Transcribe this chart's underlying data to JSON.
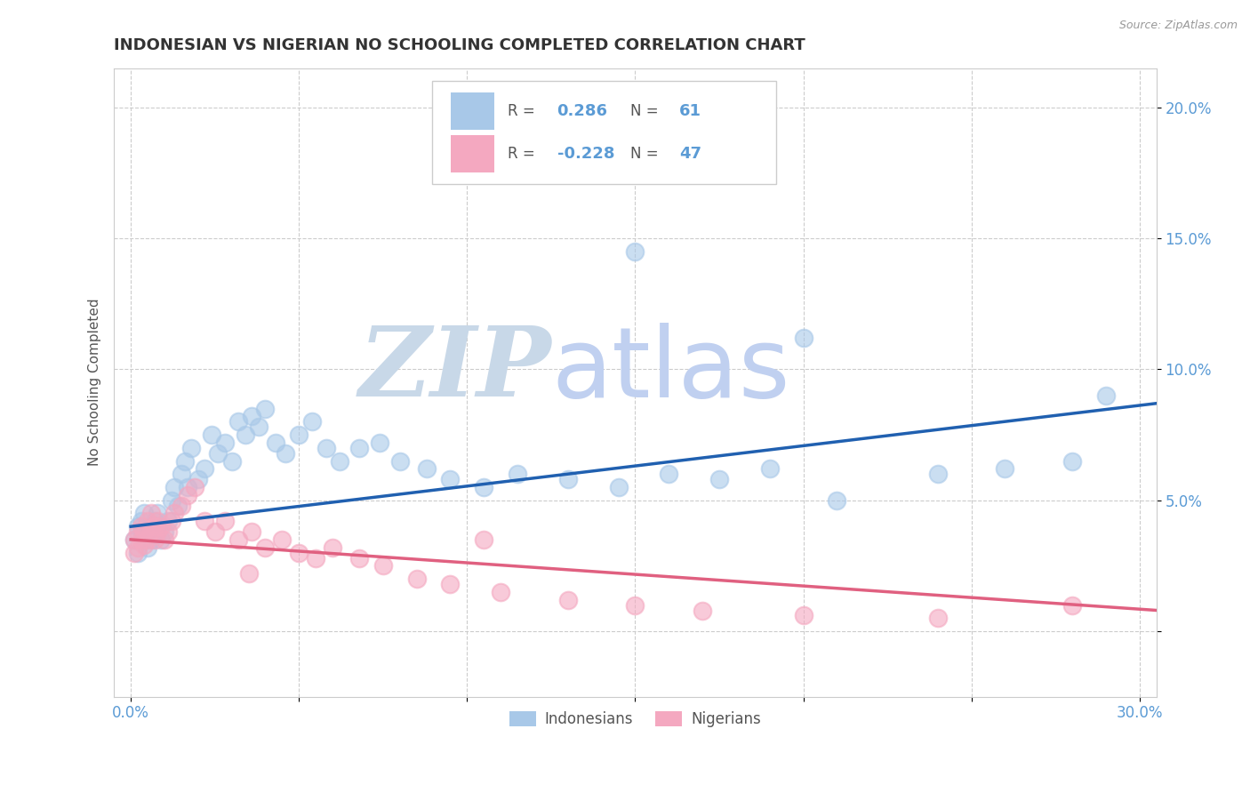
{
  "title": "INDONESIAN VS NIGERIAN NO SCHOOLING COMPLETED CORRELATION CHART",
  "source": "Source: ZipAtlas.com",
  "ylabel": "No Schooling Completed",
  "xlim": [
    -0.005,
    0.305
  ],
  "ylim": [
    -0.025,
    0.215
  ],
  "xtick_positions": [
    0.0,
    0.05,
    0.1,
    0.15,
    0.2,
    0.25,
    0.3
  ],
  "xtick_labels": [
    "0.0%",
    "",
    "",
    "",
    "",
    "",
    "30.0%"
  ],
  "ytick_positions": [
    0.0,
    0.05,
    0.1,
    0.15,
    0.2
  ],
  "ytick_labels": [
    "",
    "5.0%",
    "10.0%",
    "15.0%",
    "20.0%"
  ],
  "indonesian_R": 0.286,
  "indonesian_N": 61,
  "nigerian_R": -0.228,
  "nigerian_N": 47,
  "scatter_color_indonesian": "#a8c8e8",
  "scatter_color_nigerian": "#f4a8c0",
  "line_color_indonesian": "#2060b0",
  "line_color_nigerian": "#e06080",
  "legend_label_indonesian": "Indonesians",
  "legend_label_nigerian": "Nigerians",
  "background_color": "#ffffff",
  "watermark_zip": "ZIP",
  "watermark_atlas": "atlas",
  "watermark_color_zip": "#c8d8e8",
  "watermark_color_atlas": "#c0d0f0",
  "grid_color": "#cccccc",
  "tick_color": "#5b9bd5",
  "indon_line_x": [
    0.0,
    0.305
  ],
  "indon_line_y": [
    0.04,
    0.087
  ],
  "nig_line_x": [
    0.0,
    0.305
  ],
  "nig_line_y": [
    0.035,
    0.008
  ],
  "indonesian_x": [
    0.001,
    0.002,
    0.002,
    0.003,
    0.003,
    0.004,
    0.004,
    0.005,
    0.005,
    0.006,
    0.006,
    0.007,
    0.007,
    0.008,
    0.008,
    0.009,
    0.01,
    0.011,
    0.012,
    0.013,
    0.014,
    0.015,
    0.016,
    0.017,
    0.018,
    0.02,
    0.022,
    0.024,
    0.026,
    0.028,
    0.03,
    0.032,
    0.034,
    0.036,
    0.038,
    0.04,
    0.043,
    0.046,
    0.05,
    0.054,
    0.058,
    0.062,
    0.068,
    0.074,
    0.08,
    0.088,
    0.095,
    0.105,
    0.115,
    0.13,
    0.145,
    0.16,
    0.175,
    0.19,
    0.21,
    0.24,
    0.26,
    0.28,
    0.15,
    0.2,
    0.29
  ],
  "indonesian_y": [
    0.035,
    0.04,
    0.03,
    0.038,
    0.042,
    0.035,
    0.045,
    0.038,
    0.032,
    0.04,
    0.035,
    0.042,
    0.038,
    0.045,
    0.04,
    0.035,
    0.038,
    0.042,
    0.05,
    0.055,
    0.048,
    0.06,
    0.065,
    0.055,
    0.07,
    0.058,
    0.062,
    0.075,
    0.068,
    0.072,
    0.065,
    0.08,
    0.075,
    0.082,
    0.078,
    0.085,
    0.072,
    0.068,
    0.075,
    0.08,
    0.07,
    0.065,
    0.07,
    0.072,
    0.065,
    0.062,
    0.058,
    0.055,
    0.06,
    0.058,
    0.055,
    0.06,
    0.058,
    0.062,
    0.05,
    0.06,
    0.062,
    0.065,
    0.145,
    0.112,
    0.09
  ],
  "nigerian_x": [
    0.001,
    0.001,
    0.002,
    0.002,
    0.003,
    0.003,
    0.004,
    0.004,
    0.005,
    0.005,
    0.006,
    0.006,
    0.007,
    0.007,
    0.008,
    0.008,
    0.009,
    0.01,
    0.011,
    0.012,
    0.013,
    0.015,
    0.017,
    0.019,
    0.022,
    0.025,
    0.028,
    0.032,
    0.036,
    0.04,
    0.045,
    0.05,
    0.055,
    0.06,
    0.068,
    0.075,
    0.085,
    0.095,
    0.11,
    0.13,
    0.15,
    0.17,
    0.2,
    0.24,
    0.28,
    0.105,
    0.035
  ],
  "nigerian_y": [
    0.03,
    0.035,
    0.032,
    0.038,
    0.035,
    0.04,
    0.033,
    0.038,
    0.035,
    0.042,
    0.038,
    0.045,
    0.04,
    0.035,
    0.042,
    0.038,
    0.04,
    0.035,
    0.038,
    0.042,
    0.045,
    0.048,
    0.052,
    0.055,
    0.042,
    0.038,
    0.042,
    0.035,
    0.038,
    0.032,
    0.035,
    0.03,
    0.028,
    0.032,
    0.028,
    0.025,
    0.02,
    0.018,
    0.015,
    0.012,
    0.01,
    0.008,
    0.006,
    0.005,
    0.01,
    0.035,
    0.022
  ]
}
